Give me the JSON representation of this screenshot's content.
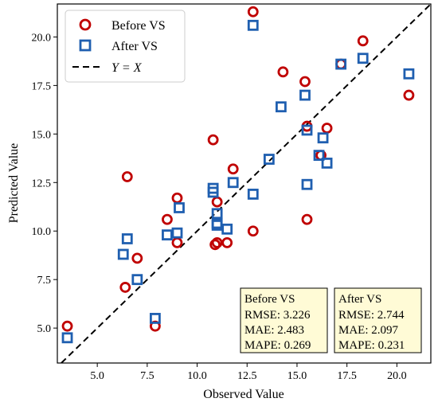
{
  "chart_data": {
    "type": "scatter",
    "xlabel": "Observed Value",
    "ylabel": "Predicted Value",
    "xlim": [
      3.0,
      21.7
    ],
    "ylim": [
      3.2,
      21.7
    ],
    "xticks": [
      5.0,
      7.5,
      10.0,
      12.5,
      15.0,
      17.5,
      20.0
    ],
    "yticks": [
      5.0,
      7.5,
      10.0,
      12.5,
      15.0,
      17.5,
      20.0
    ],
    "legend_position": "top-left",
    "reference_line": {
      "label": "Y = X",
      "style": "dashed",
      "color": "#000000"
    },
    "series": [
      {
        "name": "Before VS",
        "marker": "circle",
        "color": "#c00000",
        "points": [
          [
            3.5,
            5.1
          ],
          [
            6.4,
            7.1
          ],
          [
            6.5,
            12.8
          ],
          [
            7.0,
            8.6
          ],
          [
            7.9,
            5.1
          ],
          [
            8.5,
            10.6
          ],
          [
            9.0,
            9.4
          ],
          [
            9.0,
            11.7
          ],
          [
            10.8,
            14.7
          ],
          [
            10.9,
            9.3
          ],
          [
            11.0,
            9.4
          ],
          [
            11.0,
            11.5
          ],
          [
            11.5,
            9.4
          ],
          [
            11.8,
            13.2
          ],
          [
            12.8,
            10.0
          ],
          [
            12.8,
            21.3
          ],
          [
            14.3,
            18.2
          ],
          [
            15.4,
            17.7
          ],
          [
            15.5,
            15.4
          ],
          [
            15.5,
            10.6
          ],
          [
            16.2,
            13.9
          ],
          [
            16.5,
            15.3
          ],
          [
            17.2,
            18.6
          ],
          [
            18.3,
            19.8
          ],
          [
            20.6,
            17.0
          ]
        ]
      },
      {
        "name": "After VS",
        "marker": "square",
        "color": "#1f5fb0",
        "points": [
          [
            3.5,
            4.5
          ],
          [
            6.3,
            8.8
          ],
          [
            6.5,
            9.6
          ],
          [
            7.0,
            7.5
          ],
          [
            7.9,
            5.5
          ],
          [
            8.5,
            9.8
          ],
          [
            9.0,
            9.9
          ],
          [
            9.1,
            11.2
          ],
          [
            10.8,
            12.0
          ],
          [
            10.8,
            12.2
          ],
          [
            11.0,
            10.4
          ],
          [
            11.0,
            10.9
          ],
          [
            11.0,
            10.3
          ],
          [
            11.5,
            10.1
          ],
          [
            11.8,
            12.5
          ],
          [
            12.8,
            11.9
          ],
          [
            12.8,
            20.6
          ],
          [
            13.6,
            13.7
          ],
          [
            14.2,
            16.4
          ],
          [
            15.4,
            17.0
          ],
          [
            15.5,
            15.2
          ],
          [
            15.5,
            12.4
          ],
          [
            16.1,
            13.9
          ],
          [
            16.3,
            14.8
          ],
          [
            16.5,
            13.5
          ],
          [
            17.2,
            18.6
          ],
          [
            18.3,
            18.9
          ],
          [
            20.6,
            18.1
          ]
        ]
      }
    ],
    "metrics": [
      {
        "title": "Before VS",
        "lines": [
          "RMSE: 3.226",
          "MAE: 2.483",
          "MAPE: 0.269"
        ]
      },
      {
        "title": "After VS",
        "lines": [
          "RMSE: 2.744",
          "MAE: 2.097",
          "MAPE: 0.231"
        ]
      }
    ],
    "legend": {
      "before": "Before VS",
      "after": "After VS",
      "yx": "Y = X"
    }
  }
}
